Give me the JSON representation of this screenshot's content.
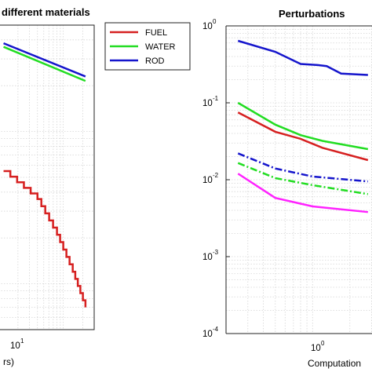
{
  "chart_data": [
    {
      "type": "line",
      "title": "different materials",
      "xlabel": "rs)",
      "ylabel": "",
      "x_scale": "log",
      "y_scale": "log",
      "x_ticks": [
        {
          "base": "10",
          "exp": "1"
        }
      ],
      "grid": true,
      "legend": {
        "placement": "top-right",
        "entries": [
          "FUEL",
          "WATER",
          "ROD"
        ]
      },
      "series": [
        {
          "name": "FUEL",
          "color": "#d62020",
          "style": "staircase-decline",
          "x": [
            1.2,
            4,
            8,
            14,
            22
          ],
          "y": [
            0.55,
            0.36,
            0.21,
            0.12,
            0.07
          ]
        },
        {
          "name": "WATER",
          "color": "#22dd22",
          "style": "solid",
          "x": [
            1.2,
            22
          ],
          "y": [
            3.6,
            2.15
          ]
        },
        {
          "name": "ROD",
          "color": "#1515cc",
          "style": "solid",
          "x": [
            1.2,
            22
          ],
          "y": [
            3.8,
            2.3
          ]
        }
      ]
    },
    {
      "type": "line",
      "title": "Perturbations",
      "xlabel": "Computation",
      "ylabel": "",
      "x_scale": "log",
      "y_scale": "log",
      "y_ticks": [
        {
          "base": "10",
          "exp": "0"
        },
        {
          "base": "10",
          "exp": "-1"
        },
        {
          "base": "10",
          "exp": "-2"
        },
        {
          "base": "10",
          "exp": "-3"
        },
        {
          "base": "10",
          "exp": "-4"
        }
      ],
      "x_ticks": [
        {
          "base": "10",
          "exp": "0"
        }
      ],
      "ylim": [
        0.0001,
        1
      ],
      "grid": true,
      "series": [
        {
          "color": "#1515cc",
          "style": "solid",
          "x": [
            0.25,
            0.5,
            0.8,
            1.1,
            1.3,
            1.7,
            2.8
          ],
          "y": [
            0.64,
            0.46,
            0.32,
            0.31,
            0.3,
            0.24,
            0.23
          ]
        },
        {
          "color": "#22dd22",
          "style": "solid",
          "x": [
            0.25,
            0.5,
            0.8,
            1.2,
            2.8
          ],
          "y": [
            0.1,
            0.052,
            0.038,
            0.032,
            0.025
          ]
        },
        {
          "color": "#d62020",
          "style": "solid",
          "x": [
            0.25,
            0.5,
            0.8,
            1.2,
            2.8
          ],
          "y": [
            0.075,
            0.042,
            0.034,
            0.026,
            0.018
          ]
        },
        {
          "color": "#1515cc",
          "style": "dash-dot",
          "x": [
            0.25,
            0.5,
            1.0,
            2.8
          ],
          "y": [
            0.022,
            0.014,
            0.011,
            0.0095
          ]
        },
        {
          "color": "#22dd22",
          "style": "dash-dot",
          "x": [
            0.25,
            0.5,
            1.0,
            2.8
          ],
          "y": [
            0.0165,
            0.0105,
            0.0085,
            0.0065
          ]
        },
        {
          "color": "#ff22ff",
          "style": "solid",
          "x": [
            0.25,
            0.5,
            1.0,
            2.8
          ],
          "y": [
            0.012,
            0.0058,
            0.0045,
            0.0038
          ]
        }
      ]
    }
  ]
}
